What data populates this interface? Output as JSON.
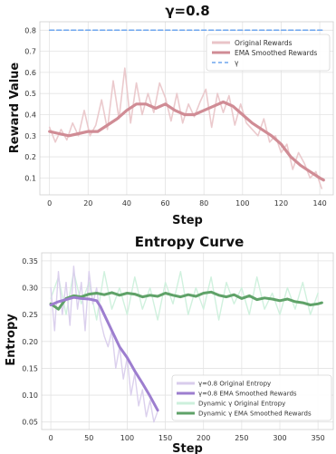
{
  "colors": {
    "top_raw": "#e9c4c8",
    "top_ema": "#d08c95",
    "gamma_line": "#6ea6ee",
    "grid": "#e3e3e3",
    "bottom_fixed_raw": "#d9cdec",
    "bottom_fixed_ema": "#9d7ecf",
    "bottom_dyn_raw": "#cdf0dc",
    "bottom_dyn_ema": "#5fa268"
  },
  "chart_data": [
    {
      "type": "line",
      "title": "γ=0.8",
      "xlabel": "Step",
      "ylabel": "Reward Value",
      "xlim": [
        -5,
        147
      ],
      "ylim": [
        0.02,
        0.84
      ],
      "xticks": [
        0,
        20,
        40,
        60,
        80,
        100,
        120,
        140
      ],
      "yticks": [
        0.1,
        0.2,
        0.3,
        0.4,
        0.5,
        0.6,
        0.7,
        0.8
      ],
      "ytick_labels": [
        "0.1",
        "0.2",
        "0.3",
        "0.4",
        "0.5",
        "0.6",
        "0.7",
        "0.8"
      ],
      "grid": true,
      "legend": {
        "position": "upper-right",
        "entries": [
          "Original Rewards",
          "EMA Smoothed Rewards",
          "γ"
        ]
      },
      "series": [
        {
          "name": "Original Rewards",
          "x": [
            0,
            3,
            6,
            9,
            12,
            15,
            18,
            21,
            24,
            27,
            30,
            33,
            36,
            39,
            42,
            45,
            48,
            51,
            54,
            57,
            60,
            63,
            66,
            69,
            72,
            75,
            78,
            81,
            84,
            87,
            90,
            93,
            96,
            99,
            102,
            105,
            108,
            111,
            114,
            117,
            120,
            123,
            126,
            129,
            132,
            135,
            138,
            141
          ],
          "y": [
            0.34,
            0.27,
            0.33,
            0.28,
            0.36,
            0.3,
            0.42,
            0.3,
            0.35,
            0.47,
            0.33,
            0.56,
            0.38,
            0.62,
            0.36,
            0.55,
            0.4,
            0.5,
            0.41,
            0.55,
            0.48,
            0.37,
            0.5,
            0.36,
            0.45,
            0.39,
            0.46,
            0.52,
            0.34,
            0.5,
            0.41,
            0.49,
            0.35,
            0.45,
            0.36,
            0.33,
            0.3,
            0.38,
            0.27,
            0.3,
            0.22,
            0.26,
            0.14,
            0.22,
            0.17,
            0.1,
            0.13,
            0.05
          ]
        },
        {
          "name": "EMA Smoothed Rewards",
          "x": [
            0,
            5,
            10,
            15,
            20,
            25,
            30,
            35,
            40,
            45,
            50,
            55,
            60,
            65,
            70,
            75,
            80,
            85,
            90,
            95,
            100,
            105,
            110,
            115,
            120,
            125,
            130,
            135,
            140,
            142
          ],
          "y": [
            0.32,
            0.31,
            0.3,
            0.31,
            0.32,
            0.32,
            0.35,
            0.38,
            0.42,
            0.45,
            0.45,
            0.43,
            0.45,
            0.42,
            0.4,
            0.4,
            0.42,
            0.44,
            0.46,
            0.44,
            0.4,
            0.36,
            0.33,
            0.3,
            0.26,
            0.2,
            0.16,
            0.13,
            0.1,
            0.09
          ]
        },
        {
          "name": "γ",
          "x": [
            0,
            142
          ],
          "y": [
            0.8,
            0.8
          ]
        }
      ]
    },
    {
      "type": "line",
      "title": "Entropy Curve",
      "xlabel": "Step",
      "ylabel": "Entropy",
      "xlim": [
        -12,
        370
      ],
      "ylim": [
        0.036,
        0.365
      ],
      "xticks": [
        0,
        50,
        100,
        150,
        200,
        250,
        300,
        350
      ],
      "yticks": [
        0.05,
        0.1,
        0.15,
        0.2,
        0.25,
        0.3,
        0.35
      ],
      "ytick_labels": [
        "0.05",
        "0.10",
        "0.15",
        "0.20",
        "0.25",
        "0.30",
        "0.35"
      ],
      "grid": true,
      "legend": {
        "position": "lower-right",
        "entries": [
          "γ=0.8 Original Entropy",
          "γ=0.8 EMA Smoothed Rewards",
          "Dynamic γ Original Entropy",
          "Dynamic γ EMA Smoothed Rewards"
        ]
      },
      "series": [
        {
          "name": "γ=0.8 Original Entropy",
          "x": [
            0,
            5,
            10,
            15,
            20,
            25,
            30,
            35,
            40,
            45,
            50,
            55,
            60,
            65,
            70,
            75,
            80,
            85,
            90,
            95,
            100,
            105,
            110,
            115,
            120,
            125,
            130,
            135,
            140
          ],
          "y": [
            0.3,
            0.22,
            0.33,
            0.25,
            0.31,
            0.23,
            0.34,
            0.26,
            0.31,
            0.22,
            0.33,
            0.27,
            0.3,
            0.24,
            0.21,
            0.19,
            0.22,
            0.15,
            0.19,
            0.13,
            0.17,
            0.1,
            0.14,
            0.08,
            0.11,
            0.06,
            0.09,
            0.05,
            0.07
          ]
        },
        {
          "name": "γ=0.8 EMA Smoothed Rewards",
          "x": [
            0,
            10,
            20,
            30,
            40,
            50,
            60,
            65,
            70,
            80,
            90,
            100,
            110,
            120,
            130,
            140
          ],
          "y": [
            0.268,
            0.274,
            0.278,
            0.282,
            0.28,
            0.279,
            0.276,
            0.265,
            0.25,
            0.22,
            0.19,
            0.17,
            0.145,
            0.122,
            0.098,
            0.072
          ]
        },
        {
          "name": "Dynamic γ Original Entropy",
          "x": [
            0,
            10,
            20,
            30,
            40,
            50,
            60,
            70,
            80,
            90,
            100,
            110,
            120,
            130,
            140,
            150,
            160,
            170,
            180,
            190,
            200,
            210,
            220,
            230,
            240,
            250,
            260,
            270,
            280,
            290,
            300,
            310,
            320,
            330,
            340,
            350
          ],
          "y": [
            0.28,
            0.32,
            0.25,
            0.33,
            0.27,
            0.31,
            0.24,
            0.33,
            0.26,
            0.3,
            0.25,
            0.32,
            0.26,
            0.3,
            0.24,
            0.31,
            0.27,
            0.33,
            0.25,
            0.3,
            0.26,
            0.32,
            0.24,
            0.31,
            0.27,
            0.3,
            0.25,
            0.32,
            0.26,
            0.29,
            0.25,
            0.3,
            0.26,
            0.31,
            0.25,
            0.29
          ]
        },
        {
          "name": "Dynamic γ EMA Smoothed Rewards",
          "x": [
            0,
            10,
            20,
            30,
            40,
            50,
            60,
            70,
            80,
            90,
            100,
            110,
            120,
            130,
            140,
            150,
            160,
            170,
            180,
            190,
            200,
            210,
            220,
            230,
            240,
            250,
            260,
            270,
            280,
            290,
            300,
            310,
            320,
            330,
            340,
            350,
            355
          ],
          "y": [
            0.27,
            0.26,
            0.28,
            0.285,
            0.283,
            0.288,
            0.29,
            0.287,
            0.291,
            0.286,
            0.29,
            0.288,
            0.283,
            0.286,
            0.284,
            0.29,
            0.286,
            0.283,
            0.287,
            0.284,
            0.29,
            0.292,
            0.286,
            0.283,
            0.287,
            0.28,
            0.285,
            0.278,
            0.281,
            0.279,
            0.276,
            0.279,
            0.274,
            0.272,
            0.268,
            0.27,
            0.272
          ]
        }
      ]
    }
  ]
}
